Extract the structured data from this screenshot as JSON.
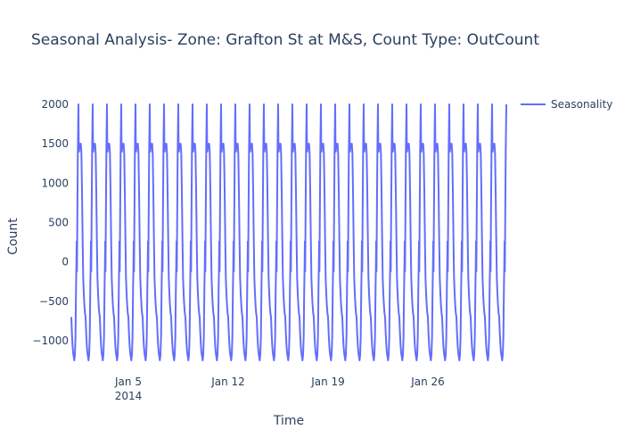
{
  "chart_data": {
    "type": "line",
    "title": "Seasonal Analysis- Zone: Grafton St at M&S, Count Type: OutCount",
    "xlabel": "Time",
    "ylabel": "Count",
    "ylim": [
      -1250,
      2000
    ],
    "xlim": [
      "2014-01-01T00:00",
      "2014-01-31T12:00"
    ],
    "x_ticks": [
      {
        "date": "2014-01-05",
        "label": "Jan 5",
        "sublabel": "2014"
      },
      {
        "date": "2014-01-12",
        "label": "Jan 12",
        "sublabel": ""
      },
      {
        "date": "2014-01-19",
        "label": "Jan 19",
        "sublabel": ""
      },
      {
        "date": "2014-01-26",
        "label": "Jan 26",
        "sublabel": ""
      }
    ],
    "y_ticks": [
      {
        "value": 2000,
        "label": "2000"
      },
      {
        "value": 1500,
        "label": "1500"
      },
      {
        "value": 1000,
        "label": "1000"
      },
      {
        "value": 500,
        "label": "500"
      },
      {
        "value": 0,
        "label": "0"
      },
      {
        "value": -500,
        "label": "−500"
      },
      {
        "value": -1000,
        "label": "−1000"
      }
    ],
    "grid": false,
    "legend_position": "top-right",
    "series": [
      {
        "name": "Seasonality",
        "color": "#636efa",
        "period_hours": 24,
        "cycle": [
          {
            "hour": 0,
            "value": -700
          },
          {
            "hour": 1,
            "value": -900
          },
          {
            "hour": 2,
            "value": -1050
          },
          {
            "hour": 3,
            "value": -1150
          },
          {
            "hour": 4,
            "value": -1200
          },
          {
            "hour": 5,
            "value": -1250
          },
          {
            "hour": 6,
            "value": -1180
          },
          {
            "hour": 7,
            "value": -950
          },
          {
            "hour": 8,
            "value": -300
          },
          {
            "hour": 8.5,
            "value": -80
          },
          {
            "hour": 9,
            "value": 260
          },
          {
            "hour": 9.5,
            "value": -120
          },
          {
            "hour": 10,
            "value": 400
          },
          {
            "hour": 11,
            "value": 1400
          },
          {
            "hour": 12,
            "value": 2000
          },
          {
            "hour": 12.5,
            "value": 1500
          },
          {
            "hour": 13,
            "value": 1400
          },
          {
            "hour": 14,
            "value": 1500
          },
          {
            "hour": 15,
            "value": 1450
          },
          {
            "hour": 16,
            "value": 1500
          },
          {
            "hour": 17,
            "value": 1380
          },
          {
            "hour": 18,
            "value": 900
          },
          {
            "hour": 19,
            "value": 300
          },
          {
            "hour": 20,
            "value": -200
          },
          {
            "hour": 21,
            "value": -400
          },
          {
            "hour": 22,
            "value": -550
          },
          {
            "hour": 23,
            "value": -650
          },
          {
            "hour": 24,
            "value": -700
          }
        ]
      }
    ]
  }
}
